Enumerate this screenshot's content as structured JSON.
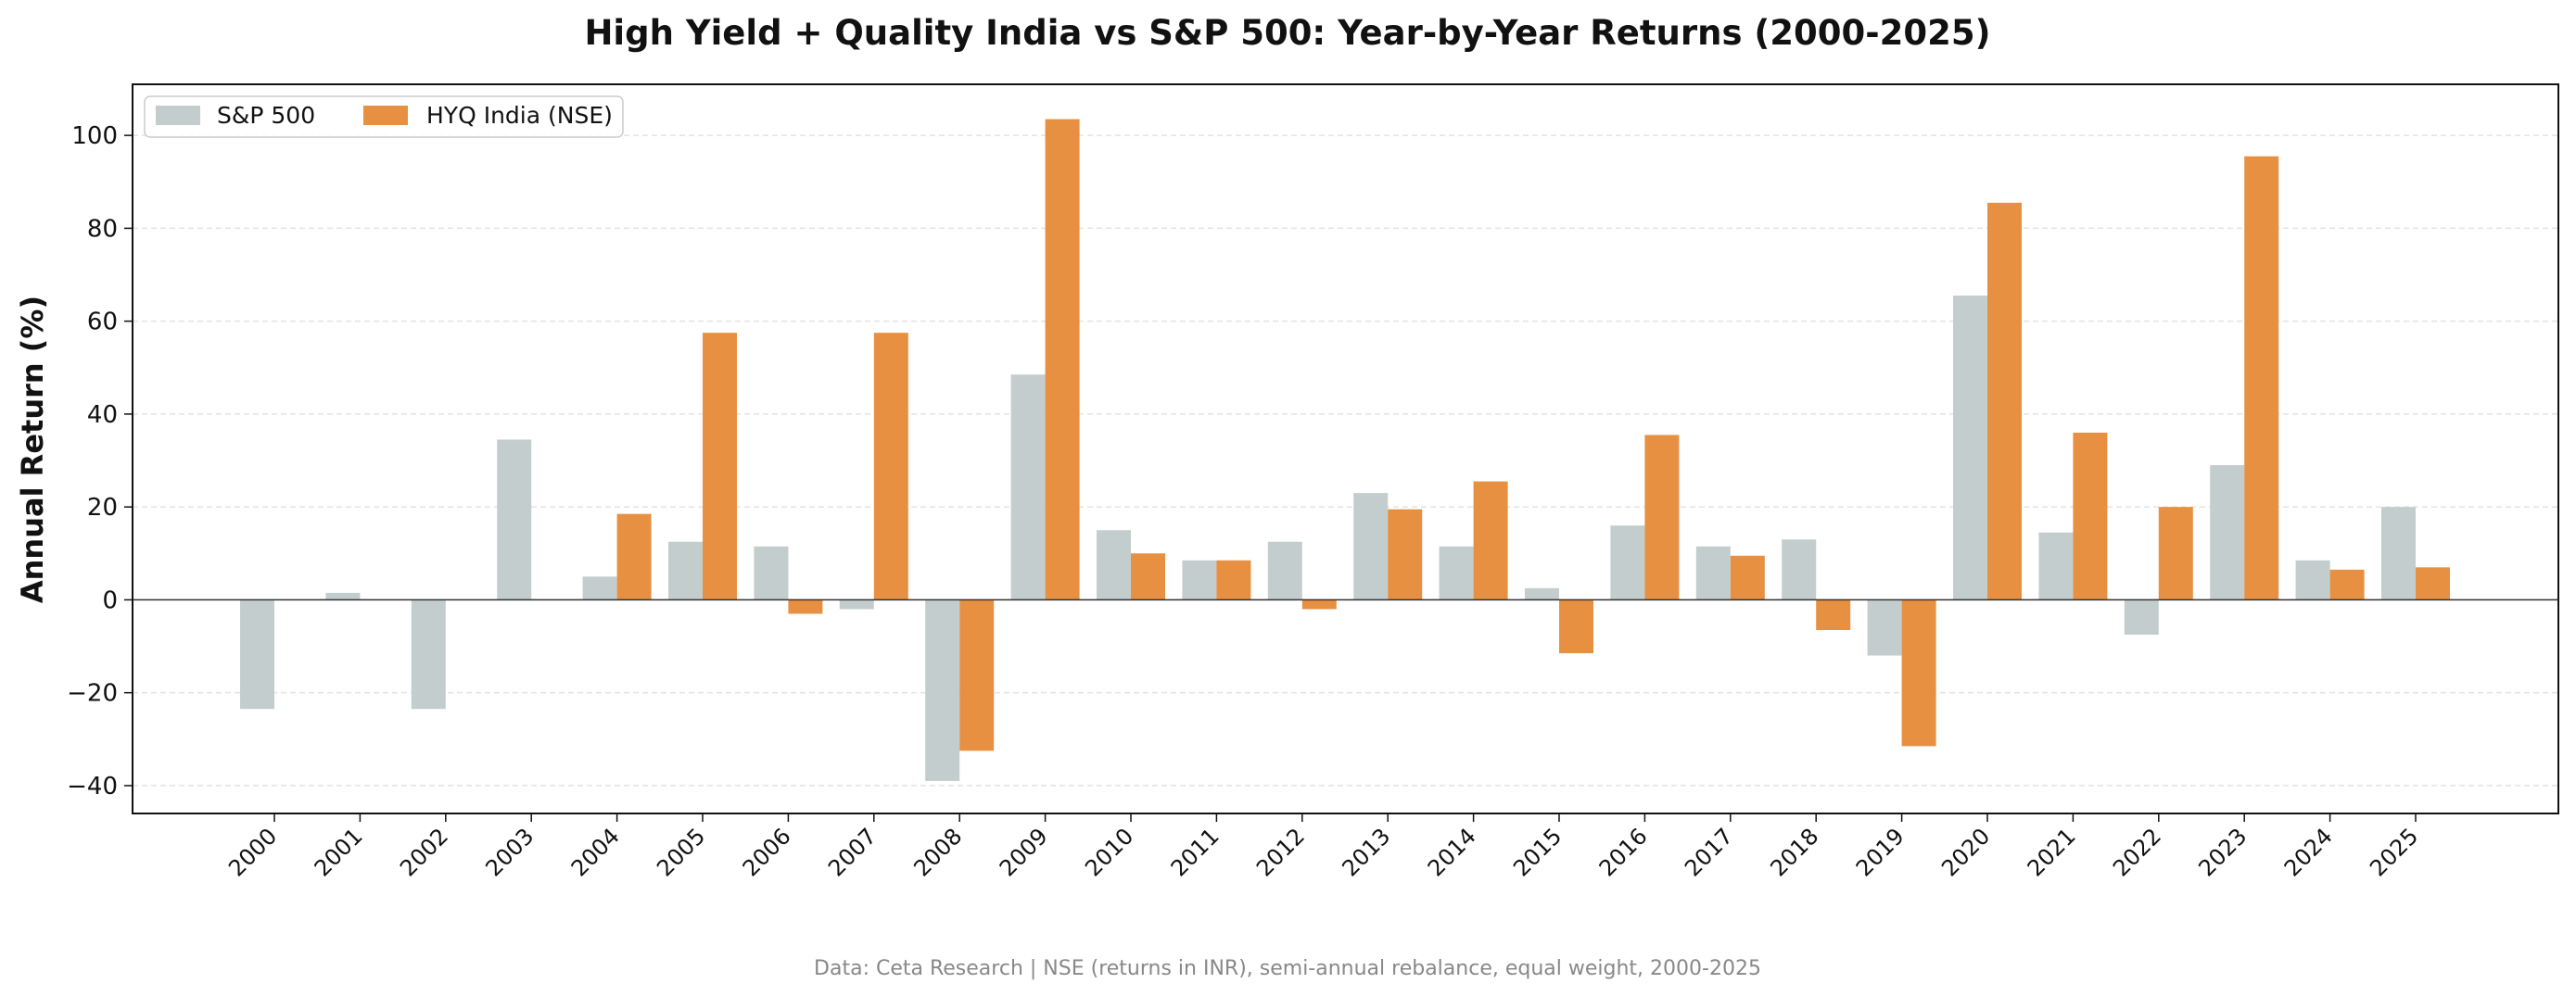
{
  "chart_data": {
    "type": "bar",
    "title": "High Yield + Quality India vs S&P 500: Year-by-Year Returns (2000-2025)",
    "xlabel": "",
    "ylabel": "Annual Return (%)",
    "ylim": [
      -46,
      111
    ],
    "yticks": [
      -40,
      -20,
      0,
      20,
      40,
      60,
      80,
      100
    ],
    "ytick_labels": [
      "−40",
      "−20",
      "0",
      "20",
      "40",
      "60",
      "80",
      "100"
    ],
    "grid": "horizontal dashed",
    "legend_position": "top-left",
    "categories": [
      "2000",
      "2001",
      "2002",
      "2003",
      "2004",
      "2005",
      "2006",
      "2007",
      "2008",
      "2009",
      "2010",
      "2011",
      "2012",
      "2013",
      "2014",
      "2015",
      "2016",
      "2017",
      "2018",
      "2019",
      "2020",
      "2021",
      "2022",
      "2023",
      "2024",
      "2025"
    ],
    "series": [
      {
        "name": "S&P 500",
        "color": "#c4cdcd",
        "values": [
          -23.5,
          1.5,
          -23.5,
          34.5,
          5.0,
          12.5,
          11.5,
          -2.0,
          -39.0,
          48.5,
          15.0,
          8.5,
          12.5,
          23.0,
          11.5,
          2.5,
          16.0,
          11.5,
          13.0,
          -12.0,
          65.5,
          14.5,
          -7.5,
          29.0,
          8.5,
          20.0
        ]
      },
      {
        "name": "HYQ India (NSE)",
        "color": "#e89042",
        "values": [
          0,
          0,
          0,
          0,
          18.5,
          57.5,
          -3.0,
          57.5,
          -32.5,
          103.5,
          10.0,
          8.5,
          -2.0,
          19.5,
          25.5,
          -11.5,
          35.5,
          9.5,
          -6.5,
          -31.5,
          85.5,
          36.0,
          20.0,
          95.5,
          6.5,
          7.0
        ]
      }
    ],
    "footnote": "Data: Ceta Research | NSE (returns in INR), semi-annual rebalance, equal weight, 2000-2025"
  }
}
